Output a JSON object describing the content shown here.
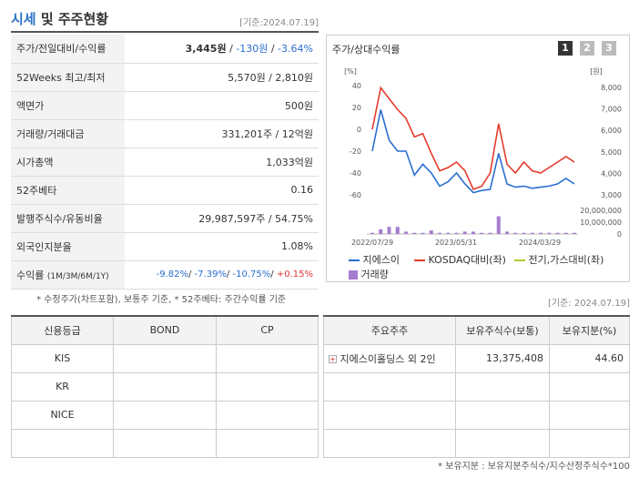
{
  "header": {
    "title_blue": "시세",
    "title_rest": " 및 주주현황",
    "date": "[기준:2024.07.19]"
  },
  "price_rows": [
    {
      "label": "주가/전일대비/수익률",
      "price": "3,445원",
      "sep1": " / ",
      "change": "-130원",
      "sep2": " / ",
      "rate": "-3.64%"
    },
    {
      "label": "52Weeks 최고/최저",
      "value": "5,570원 / 2,810원"
    },
    {
      "label": "액면가",
      "value": "500원"
    },
    {
      "label": "거래량/거래대금",
      "value": "331,201주 / 12억원"
    },
    {
      "label": "시가총액",
      "value": "1,033억원"
    },
    {
      "label": "52주베타",
      "value": "0.16"
    },
    {
      "label": "발행주식수/유동비율",
      "value": "29,987,597주 / 54.75%"
    },
    {
      "label": "외국인지분율",
      "value": "1.08%"
    },
    {
      "label": "수익률",
      "sublabel": "(1M/3M/6M/1Y)",
      "r1": "-9.82%",
      "r2": "-7.39%",
      "r3": "-10.75%",
      "r4": "+0.15%",
      "sep": "/ "
    }
  ],
  "note1": "* 수정주가(차트포함), 보통주 기준, * 52주베타: 주간수익률 기준",
  "chart_title": "주가/상대수익률",
  "pages": [
    "1",
    "2",
    "3"
  ],
  "chart_data": {
    "type": "line",
    "y_left_unit": "[%]",
    "y_right_unit": "[원]",
    "y_left_ticks": [
      "40",
      "20",
      "0",
      "-20",
      "-40",
      "-60"
    ],
    "y_right_ticks": [
      "8,000",
      "7,000",
      "6,000",
      "5,000",
      "4,000",
      "3,000"
    ],
    "volume_ticks": [
      "20,000,000",
      "10,000,000",
      "0"
    ],
    "x_ticks": [
      "2022/07/29",
      "2023/05/31",
      "2024/03/29"
    ],
    "ylim_left": [
      -60,
      40
    ],
    "series": [
      {
        "name": "지에스이",
        "color": "#2a6fd1",
        "values": [
          -20,
          18,
          -10,
          -20,
          -20,
          -42,
          -32,
          -40,
          -52,
          -48,
          -40,
          -50,
          -58,
          -56,
          -55,
          -22,
          -50,
          -53,
          -52,
          -54,
          -53,
          -52,
          -50,
          -45,
          -50
        ]
      },
      {
        "name": "KOSDAQ대비(좌)",
        "color": "#e53b2e",
        "values": [
          0,
          38,
          28,
          18,
          10,
          -7,
          -4,
          -22,
          -38,
          -35,
          -30,
          -38,
          -55,
          -52,
          -40,
          5,
          -32,
          -40,
          -30,
          -38,
          -40,
          -35,
          -30,
          -25,
          -30
        ]
      },
      {
        "name": "전기,가스대비(좌)",
        "color": "#b5cc2e",
        "values": []
      }
    ],
    "volume": [
      1,
      4,
      6,
      6,
      2,
      1,
      1,
      3,
      1,
      1,
      1,
      2,
      2,
      1,
      1,
      15,
      2,
      1,
      1,
      1,
      1,
      1,
      1,
      1,
      1
    ],
    "volume_name": "거래량",
    "volume_color": "#a57ccf"
  },
  "date2": "[기준: 2024.07.19]",
  "credit": {
    "headers": [
      "신용등급",
      "BOND",
      "CP"
    ],
    "rows": [
      [
        "KIS",
        "",
        ""
      ],
      [
        "KR",
        "",
        ""
      ],
      [
        "NICE",
        "",
        ""
      ],
      [
        "",
        "",
        ""
      ]
    ]
  },
  "holders": {
    "headers": [
      "주요주주",
      "보유주식수(보통)",
      "보유지분(%)"
    ],
    "rows": [
      {
        "name": "지에스이홀딩스 외 2인",
        "shares": "13,375,408",
        "pct": "44.60"
      },
      {
        "name": "",
        "shares": "",
        "pct": ""
      },
      {
        "name": "",
        "shares": "",
        "pct": ""
      },
      {
        "name": "",
        "shares": "",
        "pct": ""
      }
    ]
  },
  "note2": "* 보유지분 : 보유지분주식수/지수산정주식수*100"
}
